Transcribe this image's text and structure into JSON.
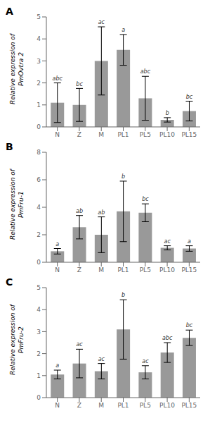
{
  "chart_data": [
    {
      "type": "bar",
      "title": "A",
      "ylabel": "Relative expression of\nPmOvtra 2",
      "categories": [
        "N",
        "Z",
        "M",
        "PL1",
        "PL5",
        "PL10",
        "PL15"
      ],
      "values": [
        1.1,
        1.0,
        3.0,
        3.5,
        1.3,
        0.32,
        0.72
      ],
      "errors": [
        0.9,
        0.75,
        1.55,
        0.7,
        1.0,
        0.1,
        0.45
      ],
      "annotations": [
        "abc",
        "bc",
        "ac",
        "a",
        "abc",
        "b",
        "bc"
      ],
      "color": "#999999",
      "ylim": [
        0,
        5
      ],
      "yticks": [
        0,
        1,
        2,
        3,
        4,
        5
      ],
      "grid": false
    },
    {
      "type": "bar",
      "title": "B",
      "ylabel": "Relative expression of\nPmFru-1",
      "categories": [
        "N",
        "Z",
        "M",
        "PL1",
        "PL5",
        "PL10",
        "PL15"
      ],
      "values": [
        0.8,
        2.55,
        2.0,
        3.7,
        3.6,
        1.05,
        1.0
      ],
      "errors": [
        0.2,
        0.85,
        1.3,
        2.2,
        0.65,
        0.15,
        0.2
      ],
      "annotations": [
        "a",
        "ab",
        "ab",
        "b",
        "bc",
        "ac",
        "a"
      ],
      "color": "#999999",
      "ylim": [
        0,
        8
      ],
      "yticks": [
        0,
        2,
        4,
        6,
        8
      ],
      "grid": false
    },
    {
      "type": "bar",
      "title": "C",
      "ylabel": "Relative expression of\nPmFru-2",
      "categories": [
        "N",
        "Z",
        "M",
        "PL1",
        "PL5",
        "PL10",
        "PL15"
      ],
      "values": [
        1.05,
        1.55,
        1.2,
        3.1,
        1.15,
        2.05,
        2.72
      ],
      "errors": [
        0.2,
        0.65,
        0.35,
        1.35,
        0.3,
        0.45,
        0.35
      ],
      "annotations": [
        "a",
        "ac",
        "ac",
        "b",
        "ac",
        "abc",
        "bc"
      ],
      "color": "#999999",
      "ylim": [
        0,
        5
      ],
      "yticks": [
        0,
        1,
        2,
        3,
        4,
        5
      ],
      "grid": false
    }
  ]
}
